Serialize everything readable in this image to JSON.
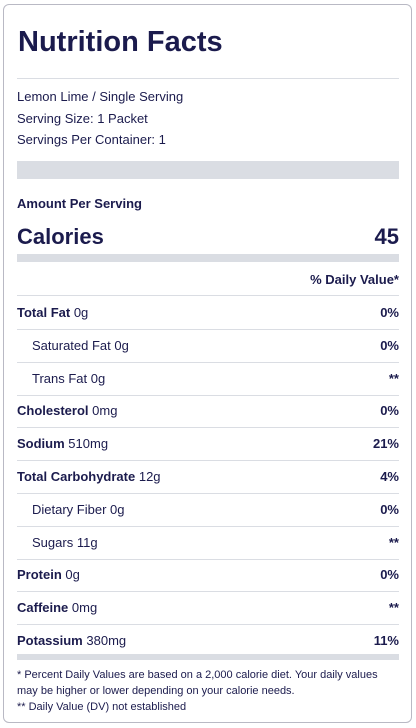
{
  "title": "Nutrition Facts",
  "info": [
    "Lemon Lime / Single Serving",
    "Serving Size: 1 Packet",
    "Servings Per Container: 1"
  ],
  "amount_heading": "Amount Per Serving",
  "calories": {
    "label": "Calories",
    "value": "45"
  },
  "dv_heading": "% Daily Value*",
  "rows": [
    {
      "name": "Total Fat",
      "amount": "0g",
      "dv": "0%",
      "indent": false
    },
    {
      "name": "Saturated Fat",
      "amount": "0g",
      "dv": "0%",
      "indent": true
    },
    {
      "name": "Trans Fat",
      "amount": "0g",
      "dv": "**",
      "indent": true
    },
    {
      "name": "Cholesterol",
      "amount": "0mg",
      "dv": "0%",
      "indent": false
    },
    {
      "name": "Sodium",
      "amount": "510mg",
      "dv": "21%",
      "indent": false
    },
    {
      "name": "Total Carbohydrate",
      "amount": "12g",
      "dv": "4%",
      "indent": false
    },
    {
      "name": "Dietary Fiber",
      "amount": "0g",
      "dv": "0%",
      "indent": true
    },
    {
      "name": "Sugars",
      "amount": "11g",
      "dv": "**",
      "indent": true
    },
    {
      "name": "Protein",
      "amount": "0g",
      "dv": "0%",
      "indent": false
    },
    {
      "name": "Caffeine",
      "amount": "0mg",
      "dv": "**",
      "indent": false
    },
    {
      "name": "Potassium",
      "amount": "380mg",
      "dv": "11%",
      "indent": false
    }
  ],
  "footnotes": [
    "* Percent Daily Values are based on a 2,000 calorie diet. Your daily values may be higher or lower depending on your calorie needs.",
    "** Daily Value (DV) not established"
  ]
}
